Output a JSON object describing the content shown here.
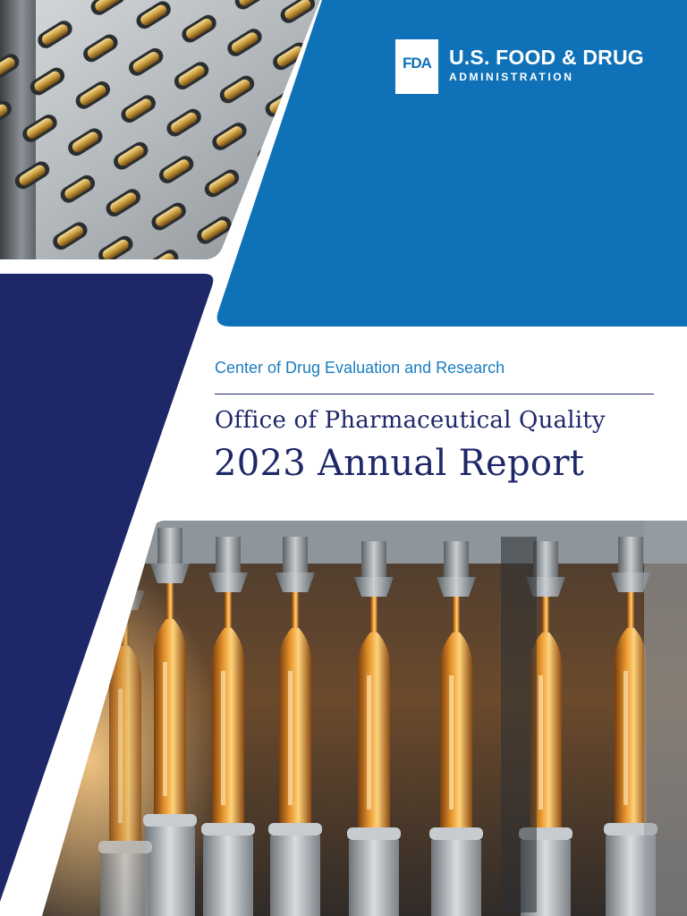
{
  "logo": {
    "mark": "FDA",
    "line1": "U.S. FOOD & DRUG",
    "line2": "ADMINISTRATION"
  },
  "cover": {
    "center_name": "Center of Drug Evaluation and Research",
    "office_title": "Office of Pharmaceutical Quality",
    "report_title": "2023 Annual Report"
  },
  "colors": {
    "fda_blue": "#0f72b8",
    "navy": "#1e2768",
    "link_blue": "#1a7dc1"
  },
  "images": {
    "top_photo": "capsule-filling-machine-photo",
    "bottom_photo": "amber-glass-ampoules-production-line-photo"
  }
}
